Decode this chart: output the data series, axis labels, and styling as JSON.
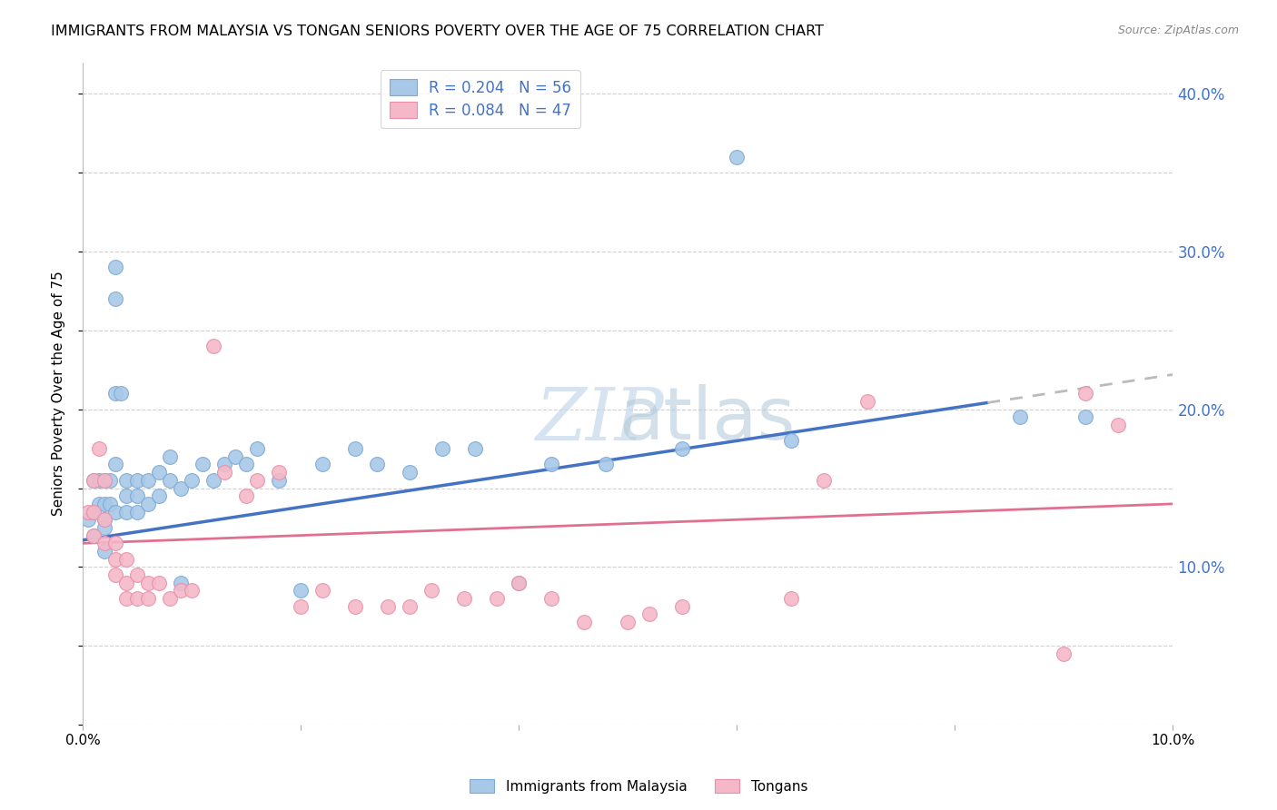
{
  "title": "IMMIGRANTS FROM MALAYSIA VS TONGAN SENIORS POVERTY OVER THE AGE OF 75 CORRELATION CHART",
  "source": "Source: ZipAtlas.com",
  "ylabel": "Seniors Poverty Over the Age of 75",
  "legend_label1": "R = 0.204   N = 56",
  "legend_label2": "R = 0.084   N = 47",
  "legend_name1": "Immigrants from Malaysia",
  "legend_name2": "Tongans",
  "color1": "#a8c8e8",
  "color2": "#f4b8c8",
  "edge_color1": "#7baad4",
  "edge_color2": "#e890a8",
  "trendline_color1": "#4472c4",
  "trendline_color2": "#e07090",
  "dashed_color": "#bbbbbb",
  "xlim": [
    0.0,
    0.1
  ],
  "ylim": [
    0.0,
    0.42
  ],
  "right_yticks": [
    0.1,
    0.2,
    0.3,
    0.4
  ],
  "right_yticklabels": [
    "10.0%",
    "20.0%",
    "30.0%",
    "40.0%"
  ],
  "blue_x": [
    0.0005,
    0.001,
    0.001,
    0.001,
    0.0015,
    0.0015,
    0.002,
    0.002,
    0.002,
    0.002,
    0.002,
    0.0025,
    0.0025,
    0.003,
    0.003,
    0.003,
    0.003,
    0.003,
    0.0035,
    0.004,
    0.004,
    0.004,
    0.005,
    0.005,
    0.005,
    0.006,
    0.006,
    0.007,
    0.007,
    0.008,
    0.008,
    0.009,
    0.009,
    0.01,
    0.011,
    0.012,
    0.013,
    0.014,
    0.015,
    0.016,
    0.018,
    0.02,
    0.022,
    0.025,
    0.027,
    0.03,
    0.033,
    0.036,
    0.04,
    0.043,
    0.048,
    0.055,
    0.06,
    0.065,
    0.086,
    0.092
  ],
  "blue_y": [
    0.13,
    0.155,
    0.135,
    0.12,
    0.155,
    0.14,
    0.155,
    0.14,
    0.13,
    0.125,
    0.11,
    0.155,
    0.14,
    0.29,
    0.27,
    0.21,
    0.165,
    0.135,
    0.21,
    0.155,
    0.145,
    0.135,
    0.155,
    0.145,
    0.135,
    0.155,
    0.14,
    0.16,
    0.145,
    0.17,
    0.155,
    0.15,
    0.09,
    0.155,
    0.165,
    0.155,
    0.165,
    0.17,
    0.165,
    0.175,
    0.155,
    0.085,
    0.165,
    0.175,
    0.165,
    0.16,
    0.175,
    0.175,
    0.09,
    0.165,
    0.165,
    0.175,
    0.36,
    0.18,
    0.195,
    0.195
  ],
  "pink_x": [
    0.0005,
    0.001,
    0.001,
    0.001,
    0.0015,
    0.002,
    0.002,
    0.002,
    0.003,
    0.003,
    0.003,
    0.004,
    0.004,
    0.004,
    0.005,
    0.005,
    0.006,
    0.006,
    0.007,
    0.008,
    0.009,
    0.01,
    0.012,
    0.013,
    0.015,
    0.016,
    0.018,
    0.02,
    0.022,
    0.025,
    0.028,
    0.03,
    0.032,
    0.035,
    0.038,
    0.04,
    0.043,
    0.046,
    0.05,
    0.052,
    0.055,
    0.065,
    0.068,
    0.072,
    0.09,
    0.092,
    0.095
  ],
  "pink_y": [
    0.135,
    0.155,
    0.135,
    0.12,
    0.175,
    0.155,
    0.13,
    0.115,
    0.115,
    0.105,
    0.095,
    0.105,
    0.09,
    0.08,
    0.095,
    0.08,
    0.09,
    0.08,
    0.09,
    0.08,
    0.085,
    0.085,
    0.24,
    0.16,
    0.145,
    0.155,
    0.16,
    0.075,
    0.085,
    0.075,
    0.075,
    0.075,
    0.085,
    0.08,
    0.08,
    0.09,
    0.08,
    0.065,
    0.065,
    0.07,
    0.075,
    0.08,
    0.155,
    0.205,
    0.045,
    0.21,
    0.19
  ],
  "background_color": "#ffffff",
  "grid_color": "#d0d0d0",
  "blue_intercept": 0.117,
  "blue_slope": 1.05,
  "pink_intercept": 0.115,
  "pink_slope": 0.25
}
